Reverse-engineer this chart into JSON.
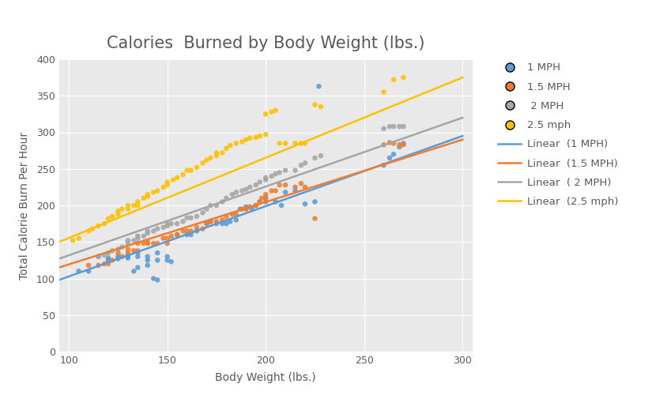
{
  "title": "Calories  Burned by Body Weight (lbs.)",
  "xlabel": "Body Weight (lbs.)",
  "ylabel": "Total Calorie Burn Per Hour",
  "xlim": [
    95,
    305
  ],
  "ylim": [
    0,
    400
  ],
  "xticks": [
    100,
    150,
    200,
    250,
    300
  ],
  "yticks": [
    0,
    50,
    100,
    150,
    200,
    250,
    300,
    350,
    400
  ],
  "colors": {
    "1mph": "#5B9BD5",
    "1.5mph": "#ED7D31",
    "2mph": "#A5A5A5",
    "2.5mph": "#FFC000"
  },
  "scatter_1mph": [
    [
      105,
      110
    ],
    [
      110,
      110
    ],
    [
      115,
      130
    ],
    [
      120,
      125
    ],
    [
      120,
      128
    ],
    [
      125,
      127
    ],
    [
      125,
      130
    ],
    [
      130,
      128
    ],
    [
      130,
      132
    ],
    [
      130,
      130
    ],
    [
      133,
      110
    ],
    [
      135,
      135
    ],
    [
      135,
      130
    ],
    [
      135,
      115
    ],
    [
      140,
      118
    ],
    [
      140,
      130
    ],
    [
      140,
      125
    ],
    [
      143,
      100
    ],
    [
      145,
      135
    ],
    [
      145,
      98
    ],
    [
      145,
      125
    ],
    [
      150,
      130
    ],
    [
      150,
      125
    ],
    [
      152,
      123
    ],
    [
      155,
      160
    ],
    [
      160,
      160
    ],
    [
      162,
      160
    ],
    [
      165,
      165
    ],
    [
      170,
      175
    ],
    [
      172,
      178
    ],
    [
      175,
      175
    ],
    [
      178,
      175
    ],
    [
      180,
      175
    ],
    [
      182,
      178
    ],
    [
      185,
      180
    ],
    [
      187,
      195
    ],
    [
      190,
      195
    ],
    [
      190,
      198
    ],
    [
      193,
      195
    ],
    [
      195,
      200
    ],
    [
      197,
      205
    ],
    [
      200,
      205
    ],
    [
      200,
      210
    ],
    [
      205,
      205
    ],
    [
      208,
      200
    ],
    [
      210,
      218
    ],
    [
      215,
      220
    ],
    [
      220,
      202
    ],
    [
      225,
      205
    ],
    [
      227,
      363
    ],
    [
      260,
      255
    ],
    [
      263,
      265
    ],
    [
      265,
      270
    ],
    [
      268,
      280
    ],
    [
      270,
      285
    ]
  ],
  "scatter_1_5mph": [
    [
      110,
      118
    ],
    [
      115,
      118
    ],
    [
      118,
      120
    ],
    [
      120,
      120
    ],
    [
      122,
      125
    ],
    [
      125,
      135
    ],
    [
      127,
      130
    ],
    [
      130,
      140
    ],
    [
      130,
      135
    ],
    [
      133,
      138
    ],
    [
      135,
      138
    ],
    [
      135,
      148
    ],
    [
      138,
      148
    ],
    [
      140,
      150
    ],
    [
      140,
      148
    ],
    [
      143,
      148
    ],
    [
      145,
      148
    ],
    [
      148,
      155
    ],
    [
      150,
      155
    ],
    [
      150,
      148
    ],
    [
      152,
      158
    ],
    [
      155,
      160
    ],
    [
      158,
      165
    ],
    [
      160,
      165
    ],
    [
      162,
      165
    ],
    [
      165,
      170
    ],
    [
      168,
      168
    ],
    [
      170,
      175
    ],
    [
      172,
      178
    ],
    [
      175,
      178
    ],
    [
      178,
      180
    ],
    [
      180,
      185
    ],
    [
      183,
      188
    ],
    [
      185,
      188
    ],
    [
      188,
      195
    ],
    [
      190,
      195
    ],
    [
      192,
      198
    ],
    [
      195,
      200
    ],
    [
      197,
      205
    ],
    [
      198,
      210
    ],
    [
      200,
      215
    ],
    [
      200,
      210
    ],
    [
      203,
      220
    ],
    [
      205,
      220
    ],
    [
      207,
      228
    ],
    [
      210,
      228
    ],
    [
      215,
      225
    ],
    [
      218,
      230
    ],
    [
      220,
      225
    ],
    [
      225,
      182
    ],
    [
      260,
      283
    ],
    [
      263,
      286
    ],
    [
      265,
      285
    ],
    [
      268,
      283
    ],
    [
      270,
      283
    ]
  ],
  "scatter_2mph": [
    [
      115,
      130
    ],
    [
      118,
      132
    ],
    [
      120,
      135
    ],
    [
      122,
      138
    ],
    [
      125,
      140
    ],
    [
      127,
      143
    ],
    [
      130,
      148
    ],
    [
      130,
      152
    ],
    [
      133,
      152
    ],
    [
      135,
      155
    ],
    [
      135,
      158
    ],
    [
      138,
      158
    ],
    [
      140,
      162
    ],
    [
      140,
      165
    ],
    [
      143,
      165
    ],
    [
      145,
      168
    ],
    [
      148,
      170
    ],
    [
      150,
      172
    ],
    [
      150,
      175
    ],
    [
      152,
      175
    ],
    [
      155,
      175
    ],
    [
      158,
      178
    ],
    [
      160,
      183
    ],
    [
      162,
      183
    ],
    [
      165,
      185
    ],
    [
      168,
      190
    ],
    [
      170,
      195
    ],
    [
      172,
      200
    ],
    [
      175,
      200
    ],
    [
      178,
      205
    ],
    [
      180,
      210
    ],
    [
      183,
      215
    ],
    [
      185,
      218
    ],
    [
      188,
      220
    ],
    [
      190,
      222
    ],
    [
      192,
      225
    ],
    [
      195,
      228
    ],
    [
      197,
      232
    ],
    [
      200,
      235
    ],
    [
      200,
      238
    ],
    [
      203,
      240
    ],
    [
      205,
      243
    ],
    [
      207,
      245
    ],
    [
      210,
      248
    ],
    [
      215,
      248
    ],
    [
      218,
      255
    ],
    [
      220,
      258
    ],
    [
      225,
      265
    ],
    [
      228,
      268
    ],
    [
      260,
      305
    ],
    [
      263,
      308
    ],
    [
      265,
      308
    ],
    [
      268,
      308
    ],
    [
      270,
      308
    ]
  ],
  "scatter_2_5mph": [
    [
      102,
      152
    ],
    [
      105,
      155
    ],
    [
      110,
      165
    ],
    [
      112,
      168
    ],
    [
      115,
      172
    ],
    [
      118,
      175
    ],
    [
      120,
      182
    ],
    [
      122,
      185
    ],
    [
      125,
      188
    ],
    [
      125,
      192
    ],
    [
      127,
      195
    ],
    [
      130,
      195
    ],
    [
      130,
      200
    ],
    [
      133,
      200
    ],
    [
      135,
      200
    ],
    [
      135,
      205
    ],
    [
      138,
      210
    ],
    [
      140,
      212
    ],
    [
      140,
      215
    ],
    [
      143,
      218
    ],
    [
      145,
      220
    ],
    [
      148,
      225
    ],
    [
      150,
      228
    ],
    [
      150,
      232
    ],
    [
      153,
      235
    ],
    [
      155,
      238
    ],
    [
      158,
      242
    ],
    [
      160,
      248
    ],
    [
      162,
      248
    ],
    [
      165,
      252
    ],
    [
      168,
      258
    ],
    [
      170,
      262
    ],
    [
      172,
      265
    ],
    [
      175,
      268
    ],
    [
      175,
      272
    ],
    [
      178,
      272
    ],
    [
      180,
      278
    ],
    [
      182,
      282
    ],
    [
      185,
      285
    ],
    [
      188,
      287
    ],
    [
      190,
      290
    ],
    [
      192,
      292
    ],
    [
      195,
      293
    ],
    [
      197,
      295
    ],
    [
      200,
      297
    ],
    [
      200,
      325
    ],
    [
      203,
      328
    ],
    [
      205,
      330
    ],
    [
      207,
      285
    ],
    [
      210,
      285
    ],
    [
      215,
      285
    ],
    [
      218,
      285
    ],
    [
      220,
      285
    ],
    [
      225,
      338
    ],
    [
      228,
      335
    ],
    [
      260,
      355
    ],
    [
      265,
      372
    ],
    [
      270,
      375
    ]
  ],
  "line_1mph": [
    [
      95,
      98
    ],
    [
      300,
      295
    ]
  ],
  "line_1_5mph": [
    [
      95,
      115
    ],
    [
      300,
      290
    ]
  ],
  "line_2mph": [
    [
      95,
      127
    ],
    [
      300,
      320
    ]
  ],
  "line_2_5mph": [
    [
      95,
      150
    ],
    [
      300,
      375
    ]
  ],
  "bg_color": "#FFFFFF",
  "plot_bg_color": "#E9E9E9",
  "grid_color": "#FFFFFF",
  "title_fontsize": 15,
  "label_fontsize": 10,
  "tick_fontsize": 9,
  "legend_fontsize": 9.5,
  "text_color": "#595959"
}
